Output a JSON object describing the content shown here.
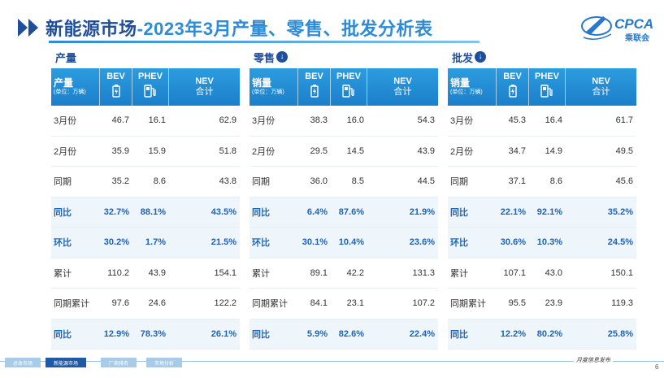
{
  "title": {
    "main": "新能源市场",
    "sub": "-2023年3月产量、零售、批发分析表"
  },
  "logo": {
    "text": "CPCA",
    "sub": "乘联会",
    "icon": "cpca-logo"
  },
  "columns": {
    "bev": "BEV",
    "phev": "PHEV",
    "nev": "NEV",
    "nev_sub": "合计",
    "unit": "(单位：万辆)"
  },
  "panels": [
    {
      "heading": "产量",
      "has_icon": false,
      "row_header": "产量",
      "rows": [
        {
          "label": "3月份",
          "bev": "46.7",
          "phev": "16.1",
          "nev": "62.9",
          "hl": false
        },
        {
          "label": "2月份",
          "bev": "35.9",
          "phev": "15.9",
          "nev": "51.8",
          "hl": false
        },
        {
          "label": "同期",
          "bev": "35.2",
          "phev": "8.6",
          "nev": "43.8",
          "hl": false
        },
        {
          "label": "同比",
          "bev": "32.7%",
          "phev": "88.1%",
          "nev": "43.5%",
          "hl": true
        },
        {
          "label": "环比",
          "bev": "30.2%",
          "phev": "1.7%",
          "nev": "21.5%",
          "hl": true
        },
        {
          "label": "累计",
          "bev": "110.2",
          "phev": "43.9",
          "nev": "154.1",
          "hl": false
        },
        {
          "label": "同期累计",
          "bev": "97.6",
          "phev": "24.6",
          "nev": "122.2",
          "hl": false
        },
        {
          "label": "同比",
          "bev": "12.9%",
          "phev": "78.3%",
          "nev": "26.1%",
          "hl": true
        }
      ]
    },
    {
      "heading": "零售",
      "has_icon": true,
      "row_header": "销量",
      "rows": [
        {
          "label": "3月份",
          "bev": "38.3",
          "phev": "16.0",
          "nev": "54.3",
          "hl": false
        },
        {
          "label": "2月份",
          "bev": "29.5",
          "phev": "14.5",
          "nev": "43.9",
          "hl": false
        },
        {
          "label": "同期",
          "bev": "36.0",
          "phev": "8.5",
          "nev": "44.5",
          "hl": false
        },
        {
          "label": "同比",
          "bev": "6.4%",
          "phev": "87.6%",
          "nev": "21.9%",
          "hl": true
        },
        {
          "label": "环比",
          "bev": "30.1%",
          "phev": "10.4%",
          "nev": "23.6%",
          "hl": true
        },
        {
          "label": "累计",
          "bev": "89.1",
          "phev": "42.2",
          "nev": "131.3",
          "hl": false
        },
        {
          "label": "同期累计",
          "bev": "84.1",
          "phev": "23.1",
          "nev": "107.2",
          "hl": false
        },
        {
          "label": "同比",
          "bev": "5.9%",
          "phev": "82.6%",
          "nev": "22.4%",
          "hl": true
        }
      ]
    },
    {
      "heading": "批发",
      "has_icon": true,
      "row_header": "销量",
      "rows": [
        {
          "label": "3月份",
          "bev": "45.3",
          "phev": "16.4",
          "nev": "61.7",
          "hl": false
        },
        {
          "label": "2月份",
          "bev": "34.7",
          "phev": "14.9",
          "nev": "49.5",
          "hl": false
        },
        {
          "label": "同期",
          "bev": "37.1",
          "phev": "8.6",
          "nev": "45.6",
          "hl": false
        },
        {
          "label": "同比",
          "bev": "22.1%",
          "phev": "92.1%",
          "nev": "35.2%",
          "hl": true
        },
        {
          "label": "环比",
          "bev": "30.6%",
          "phev": "10.3%",
          "nev": "24.5%",
          "hl": true
        },
        {
          "label": "累计",
          "bev": "107.1",
          "phev": "43.0",
          "nev": "150.1",
          "hl": false
        },
        {
          "label": "同期累计",
          "bev": "95.5",
          "phev": "23.9",
          "nev": "119.3",
          "hl": false
        },
        {
          "label": "同比",
          "bev": "12.2%",
          "phev": "80.2%",
          "nev": "25.8%",
          "hl": true
        }
      ]
    }
  ],
  "footer": {
    "tabs": [
      "总体市场",
      "新能源市场",
      "厂商排名",
      "市场分析"
    ],
    "active_tab": 1,
    "publisher": "月度信息发布",
    "page": "6"
  },
  "colors": {
    "title": "#1f4e9a",
    "header_bg": "#2d9ce0",
    "highlight_text": "#1f63b6",
    "highlight_bg": "#eef6fc"
  }
}
